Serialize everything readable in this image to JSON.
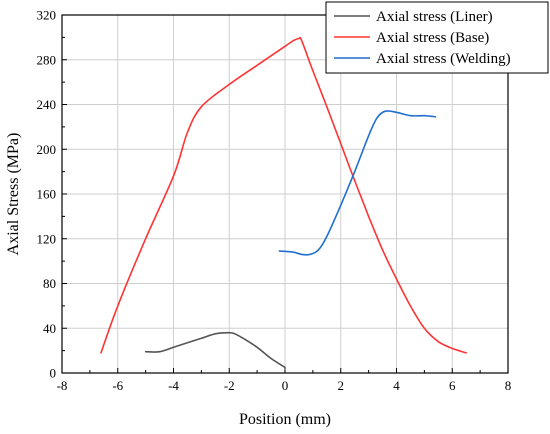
{
  "chart_data": {
    "type": "line",
    "title": "",
    "xlabel": "Position (mm)",
    "ylabel": "Axial Stress (MPa)",
    "xlim": [
      -8,
      8
    ],
    "ylim": [
      0,
      320
    ],
    "xticks": [
      -8,
      -6,
      -4,
      -2,
      0,
      2,
      4,
      6,
      8
    ],
    "yticks": [
      0,
      40,
      80,
      120,
      160,
      200,
      240,
      280,
      320
    ],
    "grid": true,
    "legend_position": "top-right",
    "series": [
      {
        "name": "Axial stress (Liner)",
        "color": "#555555",
        "x": [
          -5.0,
          -4.5,
          -4.0,
          -3.5,
          -3.0,
          -2.5,
          -2.0,
          -1.8,
          -1.5,
          -1.0,
          -0.5,
          0.0
        ],
        "y": [
          19,
          19,
          23,
          27,
          31,
          35,
          36,
          35,
          31,
          23,
          13,
          5
        ]
      },
      {
        "name": "Axial stress (Base)",
        "color": "#ff3333",
        "x": [
          -6.6,
          -6.0,
          -5.0,
          -4.0,
          -3.5,
          -3.0,
          -2.0,
          -1.0,
          0.0,
          0.3,
          0.5,
          0.6,
          1.0,
          1.5,
          2.0,
          2.5,
          3.0,
          3.5,
          4.0,
          4.5,
          5.0,
          5.5,
          6.0,
          6.5
        ],
        "y": [
          18,
          60,
          120,
          176,
          215,
          238,
          258,
          275,
          292,
          297,
          299,
          297,
          270,
          238,
          205,
          172,
          140,
          110,
          84,
          60,
          40,
          28,
          22,
          18
        ]
      },
      {
        "name": "Axial stress (Welding)",
        "color": "#1f6fd1",
        "x": [
          -0.2,
          0.3,
          0.6,
          0.9,
          1.2,
          1.5,
          2.0,
          2.5,
          3.0,
          3.3,
          3.6,
          4.0,
          4.5,
          5.0,
          5.4
        ],
        "y": [
          109,
          108,
          106,
          106,
          110,
          122,
          150,
          180,
          212,
          228,
          234,
          233,
          230,
          230,
          229
        ]
      }
    ]
  }
}
